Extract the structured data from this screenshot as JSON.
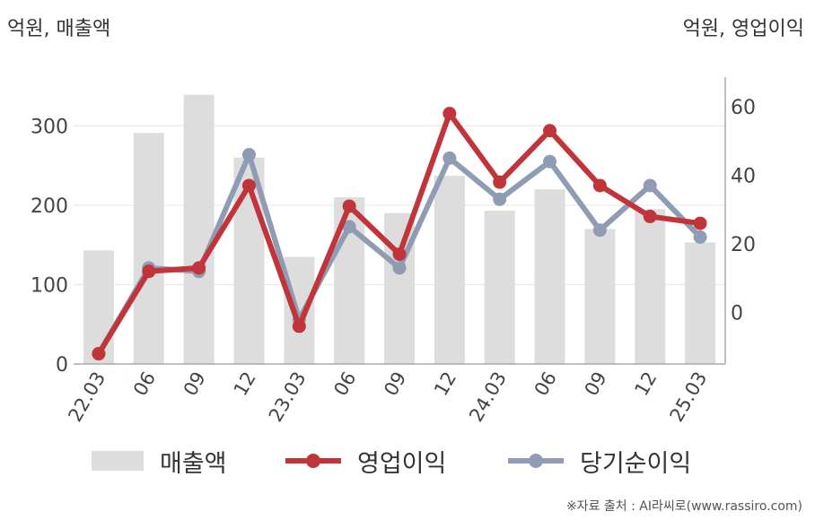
{
  "units": {
    "left": "억원, 매출액",
    "right": "억원, 영업이익"
  },
  "legend": {
    "revenue": "매출액",
    "operating": "영업이익",
    "net": "당기순이익"
  },
  "source": "※자료 출처 : AI라씨로(www.rassiro.com)",
  "colors": {
    "revenue": "#dddddd",
    "operating": "#c0343a",
    "net": "#909cb4",
    "axis": "#aaaaaa",
    "grid": "#e6e6e6"
  },
  "chart_data": {
    "type": "bar",
    "categories": [
      "22.03",
      "06",
      "09",
      "12",
      "23.03",
      "06",
      "09",
      "12",
      "24.03",
      "06",
      "09",
      "12",
      "25.03"
    ],
    "left_axis": {
      "ylim": [
        0,
        350
      ],
      "ticks": [
        0,
        100,
        200,
        300
      ]
    },
    "right_axis": {
      "ylim": [
        -15,
        66
      ],
      "ticks": [
        0,
        20,
        40,
        60
      ]
    },
    "grid": true,
    "legend_position": "bottom",
    "series": [
      {
        "name": "매출액",
        "type": "bar",
        "axis": "left",
        "values": [
          143,
          291,
          339,
          260,
          135,
          210,
          190,
          237,
          193,
          220,
          170,
          195,
          153
        ]
      },
      {
        "name": "영업이익",
        "type": "line",
        "axis": "right",
        "values": [
          -12,
          12,
          13,
          37,
          -4,
          31,
          17,
          58,
          38,
          53,
          37,
          28,
          26
        ]
      },
      {
        "name": "당기순이익",
        "type": "line",
        "axis": "right",
        "values": [
          -12,
          13,
          12,
          46,
          -2,
          25,
          13,
          45,
          33,
          44,
          24,
          37,
          22
        ]
      }
    ]
  }
}
